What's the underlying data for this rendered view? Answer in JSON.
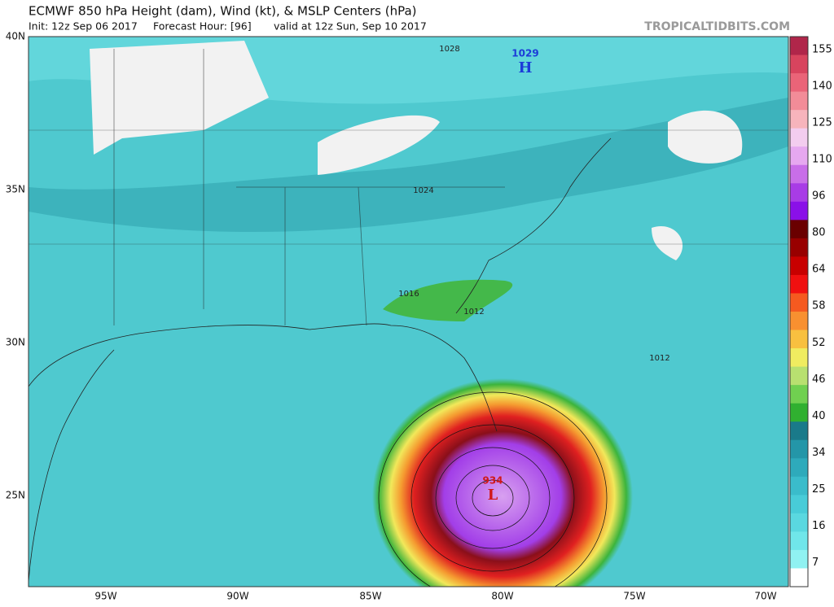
{
  "header": {
    "title": "ECMWF 850 hPa Height (dam), Wind (kt), & MSLP Centers (hPa)",
    "subtitle": [
      "Init: 12z Sep 06 2017",
      "Forecast Hour: [96]",
      "valid at 12z Sun, Sep 10 2017"
    ],
    "watermark": "TROPICALTIDBITS.COM"
  },
  "map": {
    "latitude_labels": [
      "40N",
      "35N",
      "30N",
      "25N"
    ],
    "longitude_labels": [
      "95W",
      "90W",
      "85W",
      "80W",
      "75W",
      "70W"
    ],
    "isobar_labels": [
      "1028",
      "1024",
      "1016",
      "1012",
      "1012"
    ],
    "pressure_centers": [
      {
        "value": "1029",
        "letter": "H"
      },
      {
        "value": "934",
        "letter": "L"
      }
    ]
  },
  "colorbar": {
    "labels": [
      "155",
      "140",
      "125",
      "110",
      "96",
      "80",
      "64",
      "58",
      "52",
      "46",
      "40",
      "34",
      "25",
      "16",
      "7"
    ]
  }
}
